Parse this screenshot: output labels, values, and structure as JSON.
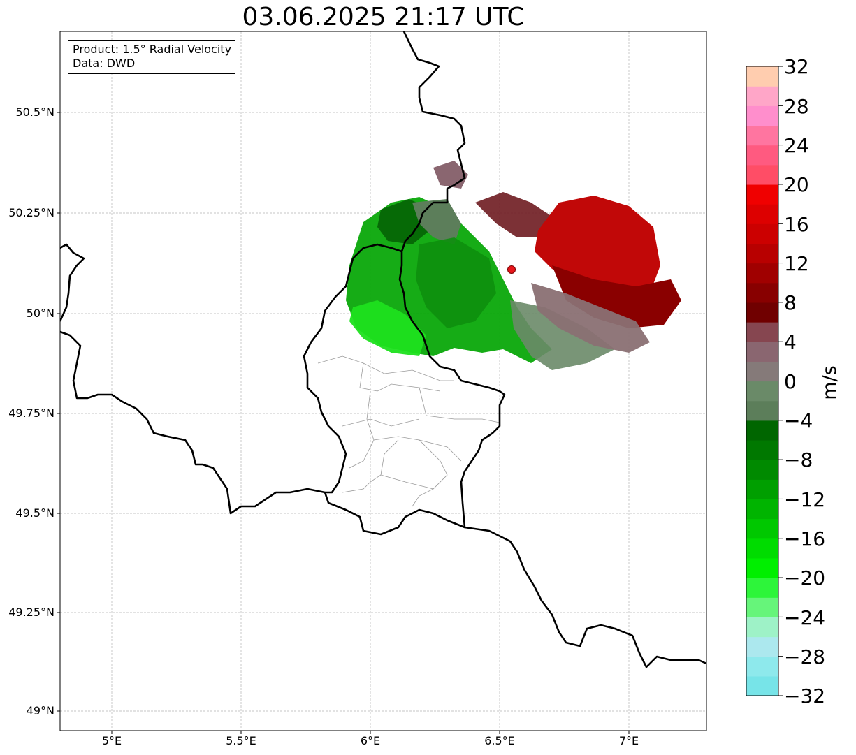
{
  "title": "03.06.2025 21:17 UTC",
  "info": {
    "product": "Product: 1.5° Radial Velocity",
    "data": "Data: DWD"
  },
  "axes": {
    "lat_ticks": [
      "50.5°N",
      "50.25°N",
      "50°N",
      "49.75°N",
      "49.5°N",
      "49.25°N",
      "49°N"
    ],
    "lon_ticks": [
      "5°E",
      "5.5°E",
      "6°E",
      "6.5°E",
      "7°E"
    ]
  },
  "map_extent": {
    "lon_min": 4.8,
    "lon_max": 7.3,
    "lat_min": 48.95,
    "lat_max": 50.7
  },
  "radar_site": {
    "lon": 6.548,
    "lat": 50.11,
    "marker_color": "#e8161b"
  },
  "colorbar": {
    "label": "m/s",
    "range": [
      -32,
      32
    ],
    "ticks": [
      "32",
      "28",
      "24",
      "20",
      "16",
      "12",
      "8",
      "4",
      "0",
      "−4",
      "−8",
      "−12",
      "−16",
      "−20",
      "−24",
      "−28",
      "−32"
    ],
    "colors_bottom_to_top": [
      "#77e4e8",
      "#8ee9ec",
      "#ace8ee",
      "#9ef2c7",
      "#66f57a",
      "#2df53a",
      "#00ef00",
      "#00dc00",
      "#00c800",
      "#00b400",
      "#009f00",
      "#008a00",
      "#007800",
      "#006600",
      "#5c7e5a",
      "#6a8a68",
      "#857a79",
      "#8a6670",
      "#864650",
      "#700000",
      "#880000",
      "#a00000",
      "#b80000",
      "#cc0000",
      "#dd0000",
      "#f00000",
      "#ff4d66",
      "#ff5a80",
      "#ff75a0",
      "#ff8ecc",
      "#ffa6c8",
      "#ffcdaf"
    ]
  }
}
